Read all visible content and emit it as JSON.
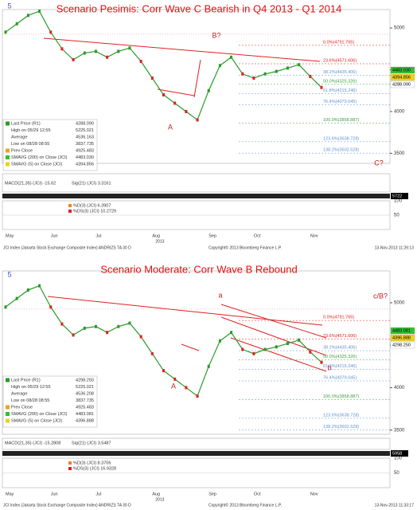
{
  "chart_data": [
    {
      "type": "line",
      "title": "Scenario Pesimis: Corr Wave C Bearish in Q4 2013 - Q1 2014",
      "categories": [
        "May",
        null,
        null,
        null,
        "Jun",
        null,
        null,
        null,
        "Jul",
        null,
        null,
        null,
        null,
        "Aug",
        null,
        null,
        null,
        null,
        "Sep",
        null,
        null,
        null,
        "Oct",
        null,
        null,
        null,
        null,
        "Nov",
        null
      ],
      "xlabel": "2013",
      "series": [
        {
          "name": "Last Price (R1)",
          "color": "#2a9a2a",
          "values": [
            4950,
            5050,
            5150,
            5200,
            4950,
            4750,
            4620,
            4700,
            4720,
            4650,
            4720,
            4760,
            4600,
            4400,
            4200,
            4100,
            4000,
            3900,
            4250,
            4550,
            4650,
            4450,
            4400,
            4450,
            4480,
            4520,
            4560,
            4420,
            4288
          ]
        }
      ],
      "ylim": [
        3380,
        5220
      ],
      "yticks": [
        5000,
        4500,
        4000,
        3500
      ],
      "fib_levels": [
        {
          "value": 4791.765,
          "label": "0.0%(4791.765)"
        },
        {
          "value": 4571.606,
          "label": "23.6%(4571.606)"
        },
        {
          "value": 4435.406,
          "label": "38.2%(4435.406)"
        },
        {
          "value": 4325.326,
          "label": "50.0%(4325.326)"
        },
        {
          "value": 4215.246,
          "label": "61.8%(4215.246)"
        },
        {
          "value": 4079.045,
          "label": "76.4%(4079.045)"
        },
        {
          "value": 3858.887,
          "label": "100.0%(3858.887)"
        },
        {
          "value": 3638.728,
          "label": "123.6%(3638.728)"
        },
        {
          "value": 3502.528,
          "label": "138.2%(3502.528)"
        }
      ],
      "annotations": [
        "5",
        "B?",
        "A",
        "C?"
      ],
      "price_labels": [
        "4483.030",
        "4394.856",
        "4288.090"
      ],
      "legend": [
        [
          "Last Price (R1)",
          "4288.090"
        ],
        [
          "High on 05/29 12:55",
          "5225.021"
        ],
        [
          "Average",
          "4536.163"
        ],
        [
          "Low on 08/28 08:55",
          "3837.735"
        ],
        [
          "Prev Close",
          "4925.483"
        ],
        [
          "SMAVG (200) on Close (JCI)",
          "4483.030"
        ],
        [
          "SMAVG (5) on Close (JCI)",
          "4394.856"
        ]
      ],
      "macd_labels": [
        "MACD(21,35) (JCI) -15.62",
        "Sig(21) (JCI) 3.3161"
      ],
      "volume_label": "5722",
      "stoch_labels": [
        "%D(3) (JCI) 6.3907",
        "%DS(3) (JCI) 10.2729"
      ],
      "stoch_ticks": [
        100,
        50
      ],
      "footer": [
        "JCI Index (Jakarta Stock Exchange Composite Index) ANDRIZS TA   30 D",
        "Copyright© 2013 Bloomberg Finance L.P.",
        "13-Nov-2013 11:26:13"
      ]
    },
    {
      "type": "line",
      "title": "Scenario Moderate: Corr Wave B Rebound",
      "categories": [
        "May",
        null,
        null,
        null,
        "Jun",
        null,
        null,
        null,
        "Jul",
        null,
        null,
        null,
        null,
        "Aug",
        null,
        null,
        null,
        null,
        "Sep",
        null,
        null,
        null,
        "Oct",
        null,
        null,
        null,
        null,
        "Nov",
        null
      ],
      "xlabel": "2013",
      "series": [
        {
          "name": "Last Price (R1)",
          "color": "#2a9a2a",
          "values": [
            4950,
            5050,
            5150,
            5200,
            4950,
            4750,
            4620,
            4700,
            4720,
            4650,
            4720,
            4760,
            4600,
            4400,
            4200,
            4100,
            4000,
            3900,
            4250,
            4550,
            4650,
            4450,
            4400,
            4450,
            4480,
            4520,
            4560,
            4420,
            4298
          ]
        }
      ],
      "ylim": [
        3450,
        5375
      ],
      "yticks": [
        5000,
        4500,
        4000,
        3500
      ],
      "fib_levels": [
        {
          "value": 4791.765,
          "label": "0.0%(4791.765)"
        },
        {
          "value": 4571.606,
          "label": "23.6%(4571.606)"
        },
        {
          "value": 4435.406,
          "label": "38.2%(4435.406)"
        },
        {
          "value": 4325.326,
          "label": "50.0%(4325.326)"
        },
        {
          "value": 4215.246,
          "label": "61.8%(4215.246)"
        },
        {
          "value": 4079.045,
          "label": "76.4%(4079.045)"
        },
        {
          "value": 3858.887,
          "label": "100.0%(3858.887)"
        },
        {
          "value": 3638.728,
          "label": "123.6%(3638.728)"
        },
        {
          "value": 3502.528,
          "label": "138.2%(3502.528)"
        }
      ],
      "annotations": [
        "5",
        "a",
        "A",
        "b",
        "c/B?"
      ],
      "price_labels": [
        "4483.081",
        "4396.888",
        "4298.250"
      ],
      "legend": [
        [
          "Last Price (R1)",
          "4298.250"
        ],
        [
          "High on 05/29 12:55",
          "5225.021"
        ],
        [
          "Average",
          "4536.208"
        ],
        [
          "Low on 08/28 08:55",
          "3837.735"
        ],
        [
          "Prev Close",
          "4925.483"
        ],
        [
          "SMAVG (200) on Close (JCI)",
          "4483.081"
        ],
        [
          "SMAVG (5) on Close (JCI)",
          "4396.888"
        ]
      ],
      "macd_labels": [
        "MACD(21,35) (JCI) -15.2808",
        "Sig(21) (JCI) 3.5487"
      ],
      "volume_label": "5958",
      "stoch_labels": [
        "%D(3) (JCI) 8.3706",
        "%DS(3) (JCI) 16.9328"
      ],
      "stoch_ticks": [
        100,
        50
      ],
      "footer": [
        "JCI Index (Jakarta Stock Exchange Composite Index) ANDRIZS TA   30 D",
        "Copyright© 2013 Bloomberg Finance L.P.",
        "13-Nov-2013 11:33:17"
      ]
    }
  ]
}
